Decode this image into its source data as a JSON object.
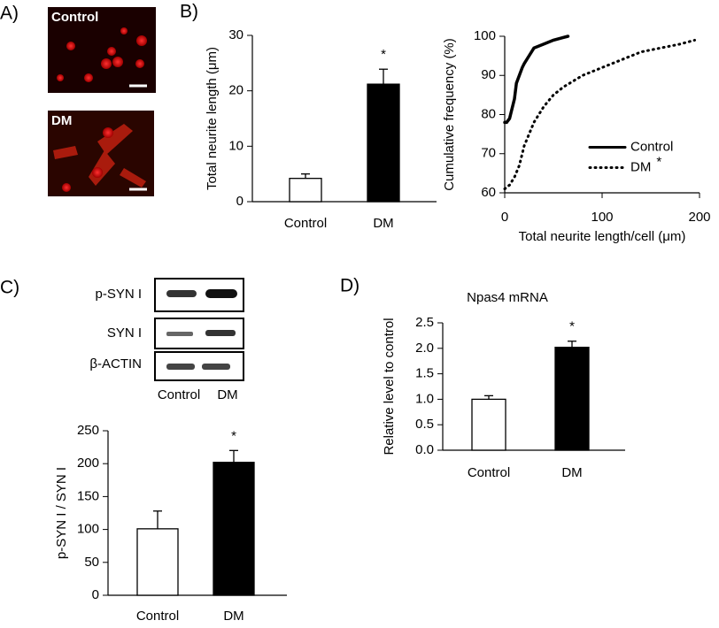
{
  "panel_labels": [
    "A)",
    "B)",
    "C)",
    "D)"
  ],
  "micrographs": [
    {
      "label": "Control"
    },
    {
      "label": "DM"
    }
  ],
  "blot": {
    "rows": [
      "p-SYN I",
      "SYN I",
      "β-ACTIN"
    ],
    "lanes": [
      "Control",
      "DM"
    ]
  },
  "chart_data": [
    {
      "type": "bar",
      "ylabel": "Total neurite length (μm)",
      "categories": [
        "Control",
        "DM"
      ],
      "values": [
        4.2,
        21.2
      ],
      "errors": [
        0.8,
        2.7
      ],
      "colors": [
        "#ffffff",
        "#000000"
      ],
      "ylim": [
        0,
        30
      ],
      "yticks": [
        0,
        10,
        20,
        30
      ],
      "annotation": "*"
    },
    {
      "type": "line",
      "xlabel": "Total neurite length/cell (μm)",
      "ylabel": "Cumulative frequency (%)",
      "xlim": [
        0,
        200
      ],
      "xticks": [
        0,
        100,
        200
      ],
      "ylim": [
        60,
        100
      ],
      "yticks": [
        60,
        70,
        80,
        90,
        100
      ],
      "legend": "right",
      "annotation": "*",
      "series": [
        {
          "name": "Control",
          "color": "#000000",
          "line_style": "solid",
          "x": [
            0,
            2,
            5,
            8,
            10,
            12,
            15,
            18,
            20,
            25,
            30,
            40,
            50,
            65
          ],
          "values": [
            78,
            78,
            79,
            82,
            84,
            88,
            90,
            92,
            93,
            95,
            97,
            98,
            99,
            100
          ]
        },
        {
          "name": "DM",
          "color": "#000000",
          "line_style": "dotted",
          "x": [
            0,
            5,
            10,
            15,
            20,
            30,
            40,
            50,
            60,
            80,
            100,
            120,
            140,
            160,
            180,
            195
          ],
          "values": [
            61,
            62,
            64,
            67,
            72,
            78,
            82,
            85,
            87,
            90,
            92,
            94,
            96,
            97,
            98,
            99
          ]
        }
      ]
    },
    {
      "type": "bar",
      "ylabel": "p-SYN I / SYN I",
      "categories": [
        "Control",
        "DM"
      ],
      "values": [
        101,
        202
      ],
      "errors": [
        27,
        18
      ],
      "colors": [
        "#ffffff",
        "#000000"
      ],
      "ylim": [
        0,
        250
      ],
      "yticks": [
        0,
        50,
        100,
        150,
        200,
        250
      ],
      "annotation": "*"
    },
    {
      "type": "bar",
      "title": "Npas4 mRNA",
      "ylabel": "Relative level to control",
      "categories": [
        "Control",
        "DM"
      ],
      "values": [
        1.0,
        2.02
      ],
      "errors": [
        0.07,
        0.12
      ],
      "colors": [
        "#ffffff",
        "#000000"
      ],
      "ylim": [
        0,
        2.5
      ],
      "yticks": [
        {
          "value": 0,
          "label": "0.0"
        },
        0.5,
        {
          "value": 1,
          "label": "1.0"
        },
        1.5,
        {
          "value": 2,
          "label": "2.0"
        },
        2.5
      ],
      "annotation": "*"
    }
  ]
}
